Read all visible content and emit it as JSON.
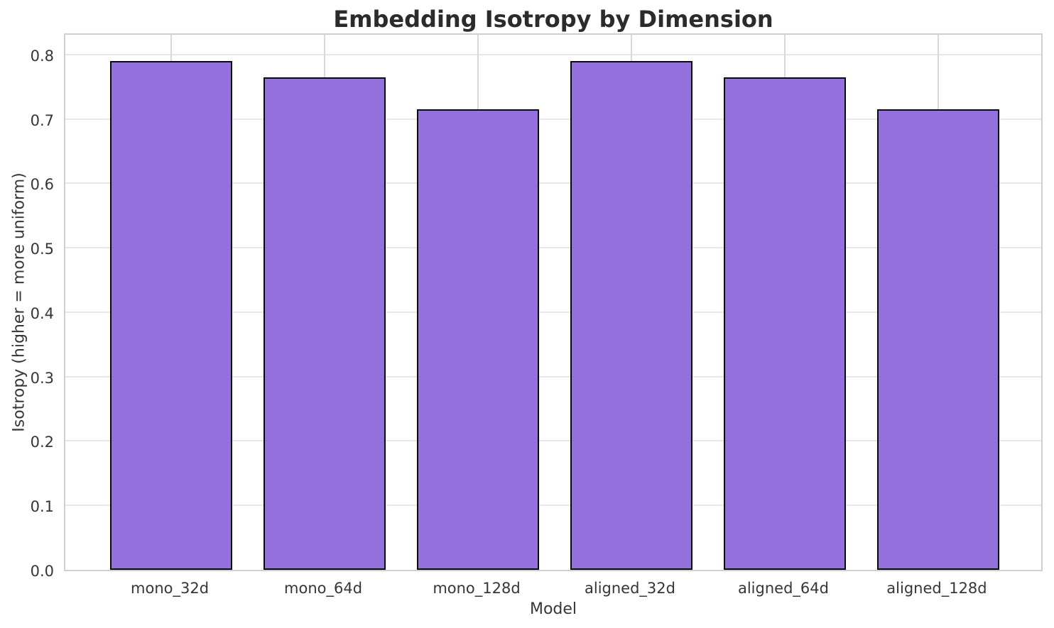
{
  "chart_data": {
    "type": "bar",
    "title": "Embedding Isotropy by Dimension",
    "xlabel": "Model",
    "ylabel": "Isotropy (higher = more uniform)",
    "categories": [
      "mono_32d",
      "mono_64d",
      "mono_128d",
      "aligned_32d",
      "aligned_64d",
      "aligned_128d"
    ],
    "values": [
      0.79,
      0.765,
      0.715,
      0.79,
      0.765,
      0.715
    ],
    "ylim": [
      0,
      0.835
    ],
    "yticks": [
      0.0,
      0.1,
      0.2,
      0.3,
      0.4,
      0.5,
      0.6,
      0.7,
      0.8
    ],
    "ytick_labels": [
      "0.0",
      "0.1",
      "0.2",
      "0.3",
      "0.4",
      "0.5",
      "0.6",
      "0.7",
      "0.8"
    ],
    "xlim": [
      -0.69,
      5.69
    ],
    "bar_width": 0.8,
    "grid": true,
    "legend": "none",
    "colors": {
      "bar_fill": "#9370DB",
      "bar_edge": "#0a0a0a",
      "grid_horizontal": "#e7e7e7",
      "grid_vertical": "#d9d9d9",
      "spine": "#d0d0d0",
      "title_text": "#2b2b2b",
      "tick_text": "#363636"
    }
  }
}
